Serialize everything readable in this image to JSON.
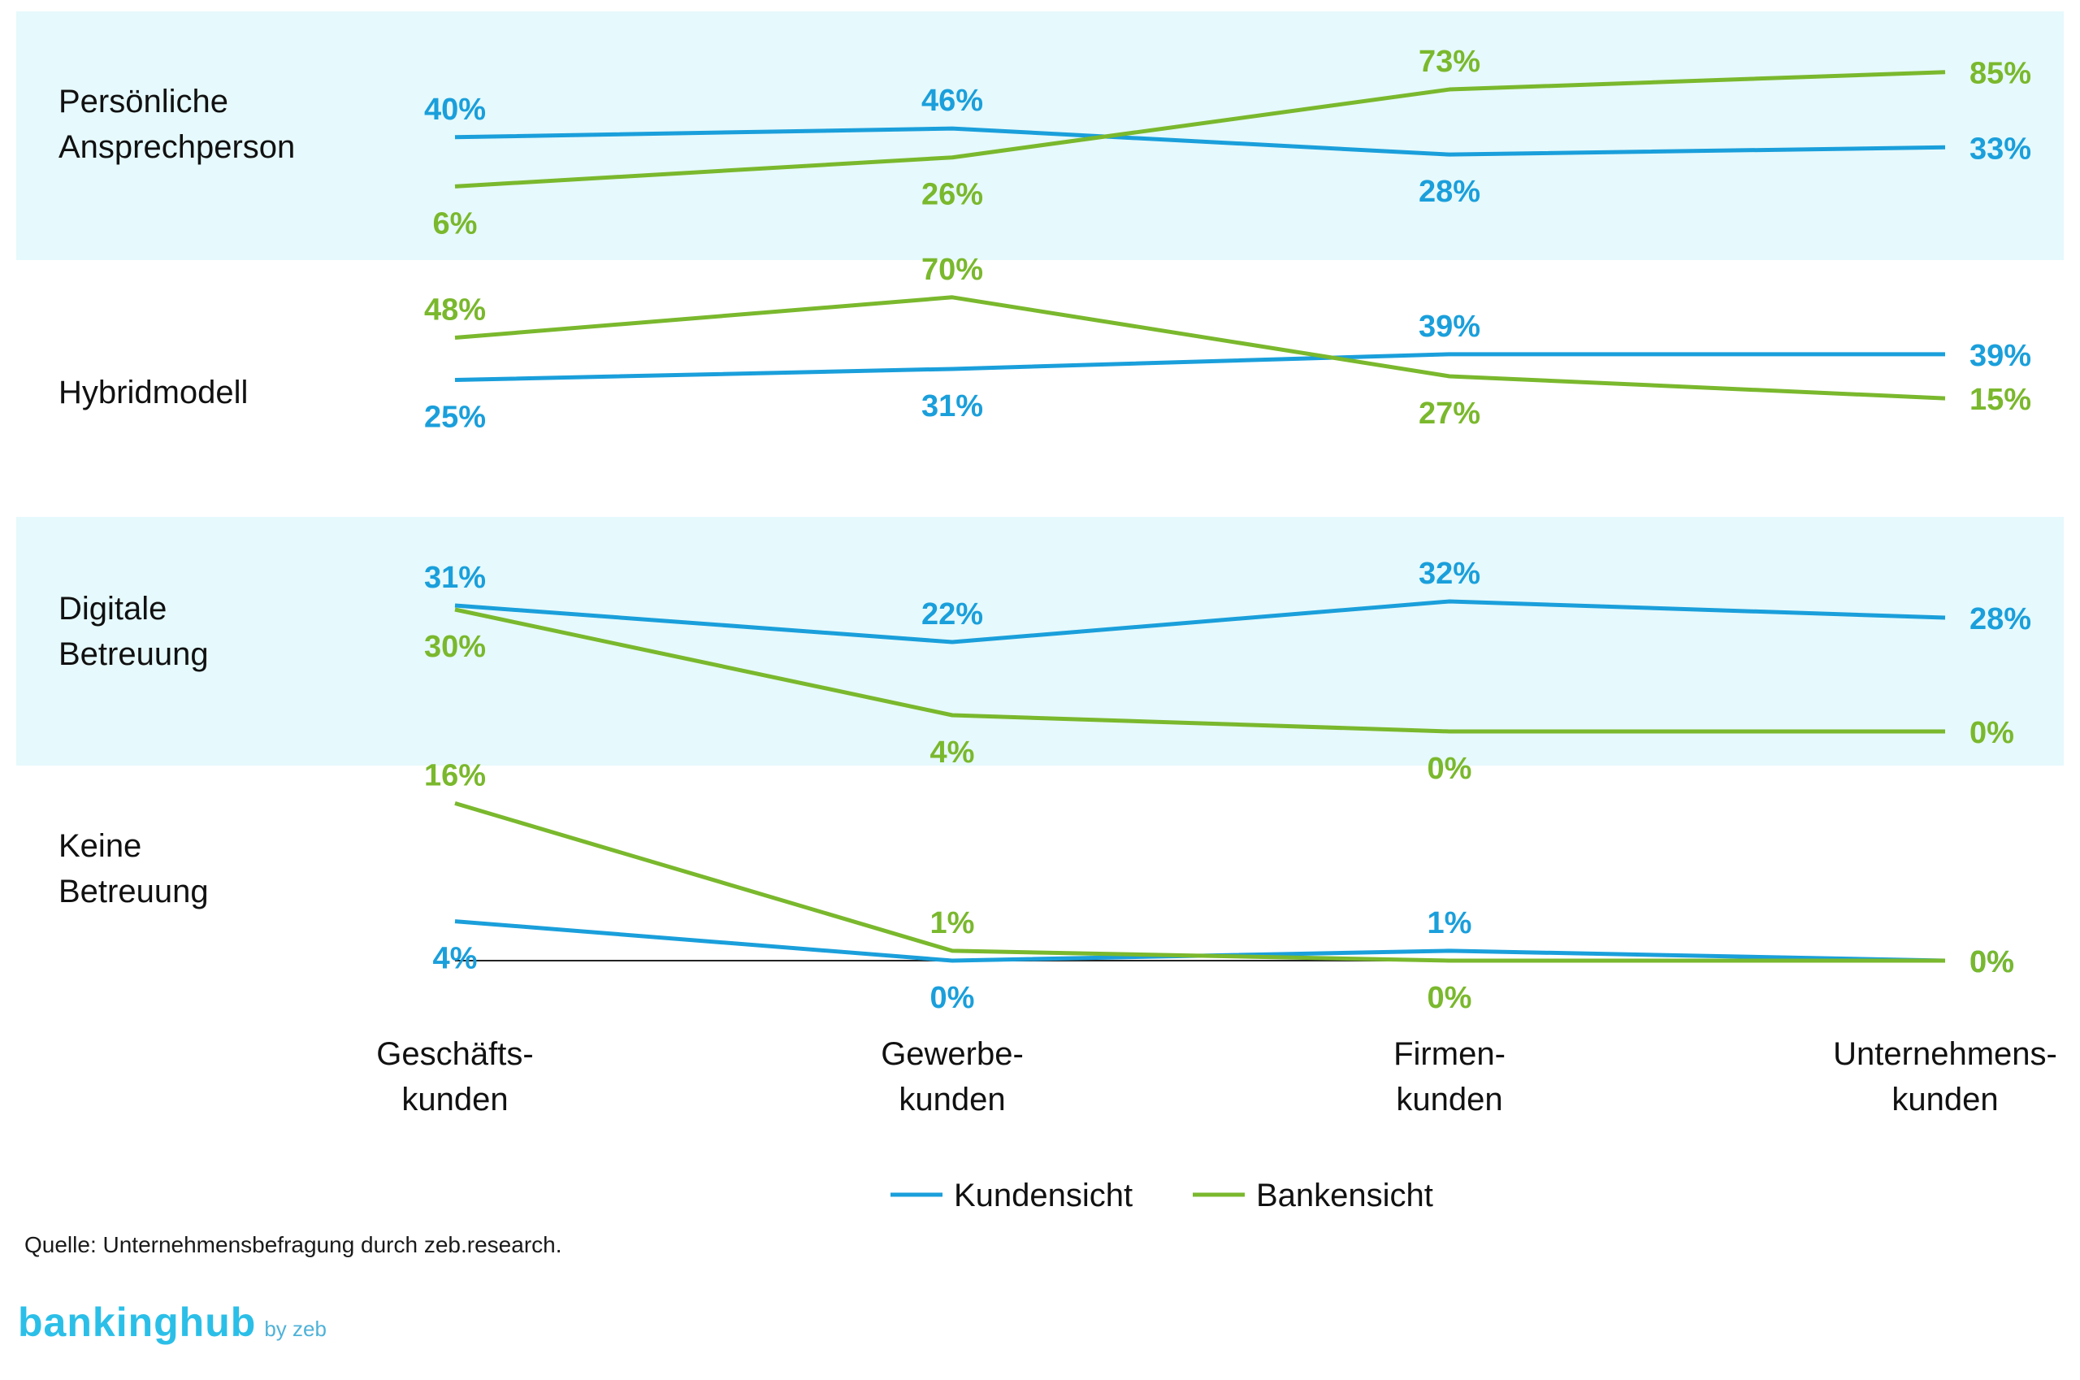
{
  "colors": {
    "kunde": "#1a9fdb",
    "bank": "#7ab82d",
    "band": "#e6f9fc",
    "text": "#111111",
    "baseline": "#222222"
  },
  "chart_data": {
    "type": "line",
    "categories": [
      [
        "Geschäfts-",
        "kunden"
      ],
      [
        "Gewerbe-",
        "kunden"
      ],
      [
        "Firmen-",
        "kunden"
      ],
      [
        "Unternehmens-",
        "kunden"
      ]
    ],
    "panels": [
      {
        "label": [
          "Persönliche",
          "Ansprechperson"
        ],
        "shaded": true,
        "series": [
          {
            "key": "kunde",
            "values": [
              40,
              46,
              28,
              33
            ]
          },
          {
            "key": "bank",
            "values": [
              6,
              26,
              73,
              85
            ]
          }
        ]
      },
      {
        "label": [
          "Hybridmodell"
        ],
        "shaded": false,
        "series": [
          {
            "key": "kunde",
            "values": [
              25,
              31,
              39,
              39
            ]
          },
          {
            "key": "bank",
            "values": [
              48,
              70,
              27,
              15
            ]
          }
        ]
      },
      {
        "label": [
          "Digitale",
          "Betreuung"
        ],
        "shaded": true,
        "series": [
          {
            "key": "kunde",
            "values": [
              31,
              22,
              32,
              28
            ]
          },
          {
            "key": "bank",
            "values": [
              30,
              4,
              0,
              0
            ]
          }
        ]
      },
      {
        "label": [
          "Keine",
          "Betreuung"
        ],
        "shaded": false,
        "series": [
          {
            "key": "kunde",
            "values": [
              4,
              0,
              1,
              0
            ]
          },
          {
            "key": "bank",
            "values": [
              16,
              1,
              0,
              0
            ]
          }
        ]
      }
    ],
    "value_suffix": "%",
    "legend": [
      {
        "key": "kunde",
        "label": "Kundensicht"
      },
      {
        "key": "bank",
        "label": "Bankensicht"
      }
    ],
    "legend_position": "bottom-center"
  },
  "footer": {
    "source": "Quelle: Unternehmensbefragung durch zeb.research.",
    "logo_main": "bankinghub",
    "logo_sub": "by zeb"
  }
}
